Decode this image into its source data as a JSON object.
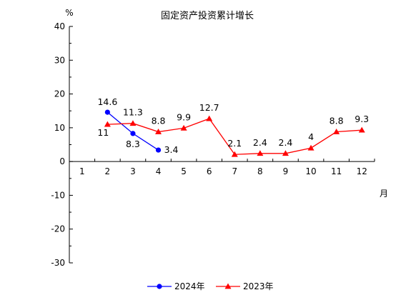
{
  "chart_data": {
    "type": "line",
    "title": "固定资产投资累计增长",
    "ylabel": "%",
    "xlabel": "月",
    "ylim": [
      -30,
      40
    ],
    "yticks": [
      -30,
      -20,
      -10,
      0,
      10,
      20,
      30,
      40
    ],
    "categories": [
      "1",
      "2",
      "3",
      "4",
      "5",
      "6",
      "7",
      "8",
      "9",
      "10",
      "11",
      "12"
    ],
    "series": [
      {
        "name": "2024年",
        "color": "#0000ff",
        "marker": "circle",
        "x": [
          "2",
          "3",
          "4"
        ],
        "values": [
          14.6,
          8.3,
          3.4
        ],
        "labels": [
          "14.6",
          "8.3",
          "3.4"
        ]
      },
      {
        "name": "2023年",
        "color": "#ff0000",
        "marker": "triangle",
        "x": [
          "2",
          "3",
          "4",
          "5",
          "6",
          "7",
          "8",
          "9",
          "10",
          "11",
          "12"
        ],
        "values": [
          11,
          11.3,
          8.8,
          9.9,
          12.7,
          2.1,
          2.4,
          2.4,
          4,
          8.8,
          9.3
        ],
        "labels": [
          "11",
          "11.3",
          "8.8",
          "9.9",
          "12.7",
          "2.1",
          "2.4",
          "2.4",
          "4",
          "8.8",
          "9.3"
        ]
      }
    ],
    "legend_position": "bottom-center",
    "grid": false
  }
}
